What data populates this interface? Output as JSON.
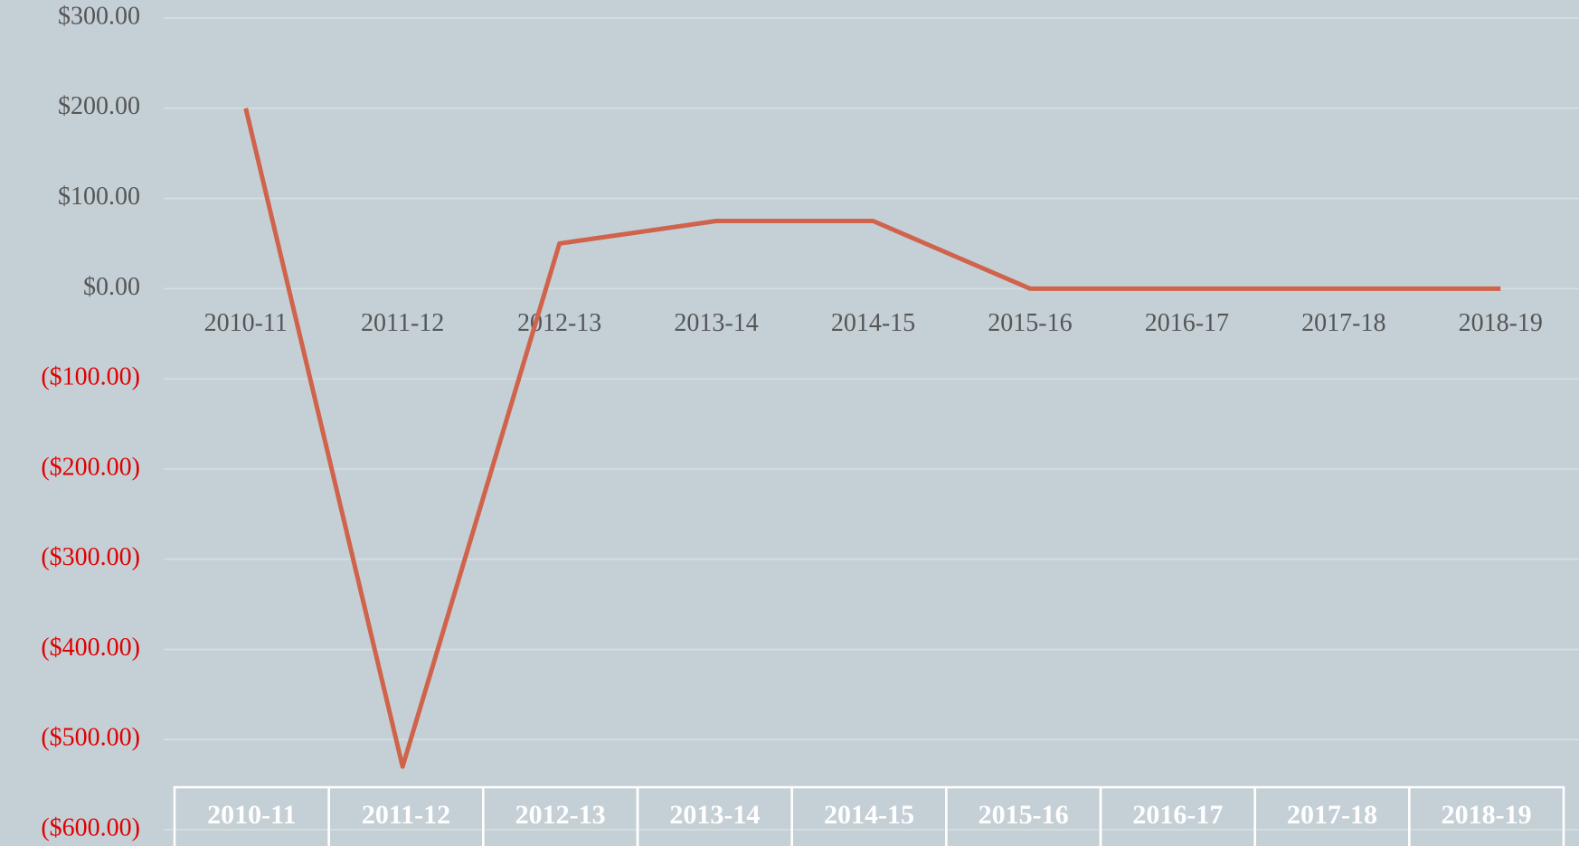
{
  "chart_data": {
    "type": "line",
    "categories": [
      "2010-11",
      "2011-12",
      "2012-13",
      "2013-14",
      "2014-15",
      "2015-16",
      "2016-17",
      "2017-18",
      "2018-19"
    ],
    "series": [
      {
        "color": "#d0634b",
        "values": [
          200,
          -530,
          50,
          75,
          75,
          0,
          0,
          0,
          0
        ]
      }
    ],
    "ylim": [
      -600,
      300
    ],
    "yticks": [
      {
        "value": -600,
        "label": "($600.00)"
      },
      {
        "value": -500,
        "label": "($500.00)"
      },
      {
        "value": -400,
        "label": "($400.00)"
      },
      {
        "value": -300,
        "label": "($300.00)"
      },
      {
        "value": -200,
        "label": "($200.00)"
      },
      {
        "value": -100,
        "label": "($100.00)"
      },
      {
        "value": 0,
        "label": "$0.00"
      },
      {
        "value": 100,
        "label": "$100.00"
      },
      {
        "value": 200,
        "label": "$200.00"
      },
      {
        "value": 300,
        "label": "$300.00"
      }
    ],
    "grid": true
  }
}
